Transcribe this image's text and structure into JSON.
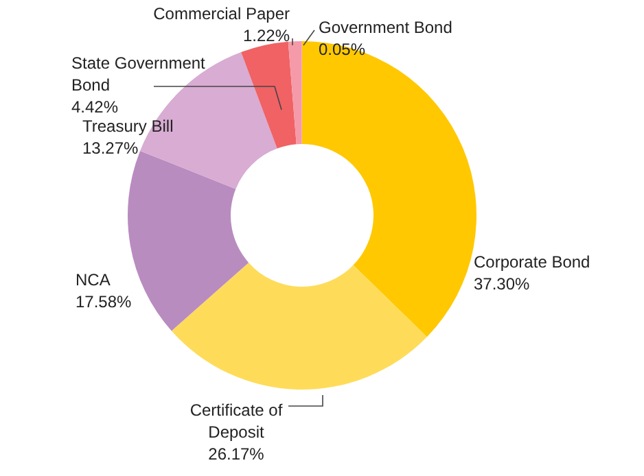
{
  "chart_data": {
    "type": "donut",
    "categories": [
      "Corporate Bond",
      "Certificate of Deposit",
      "NCA",
      "Treasury Bill",
      "State Government Bond",
      "Commercial Paper",
      "Government Bond"
    ],
    "values": [
      37.3,
      26.17,
      17.58,
      13.27,
      4.42,
      1.22,
      0.05
    ],
    "value_labels": [
      "37.30%",
      "26.17%",
      "17.58%",
      "13.27%",
      "4.42%",
      "1.22%",
      "0.05%"
    ],
    "colors": [
      "#ffc800",
      "#fedc5a",
      "#b98cc0",
      "#d8acd3",
      "#f06264",
      "#f59aa8",
      "#f5a0b0"
    ]
  }
}
